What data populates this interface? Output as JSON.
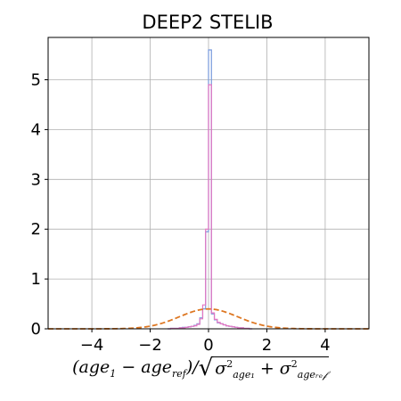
{
  "chart_data": {
    "type": "histogram",
    "title": "DEEP2 STELIB",
    "xlabel_parts": {
      "open": "(",
      "a1": "age",
      "a1_sub": "1",
      "minus": " − ",
      "a2": "age",
      "a2_sub": "ref",
      "close": ")/",
      "sig1": "σ",
      "sig1_sup": "2",
      "sig1_sub": "age₁",
      "plus": " + ",
      "sig2": "σ",
      "sig2_sup": "2",
      "sig2_sub": "ageᵣₑ𝒻"
    },
    "xlim": [
      -5.5,
      5.5
    ],
    "ylim": [
      0,
      5.85
    ],
    "xticks": [
      -4,
      -2,
      0,
      2,
      4
    ],
    "xtick_labels": [
      "−4",
      "−2",
      "0",
      "2",
      "4"
    ],
    "yticks": [
      0,
      1,
      2,
      3,
      4,
      5
    ],
    "ytick_labels": [
      "0",
      "1",
      "2",
      "3",
      "4",
      "5"
    ],
    "grid": true,
    "bin_width": 0.1,
    "series": [
      {
        "name": "histogram (blue)",
        "color": "#7799dd",
        "style": "step",
        "bins_start": -1.4,
        "values": [
          0.0,
          0.01,
          0.01,
          0.01,
          0.02,
          0.03,
          0.03,
          0.04,
          0.05,
          0.07,
          0.1,
          0.22,
          0.4,
          1.95,
          5.6,
          0.3,
          0.18,
          0.12,
          0.1,
          0.08,
          0.06,
          0.05,
          0.04,
          0.03,
          0.02,
          0.02,
          0.01,
          0.01,
          0.0
        ]
      },
      {
        "name": "histogram (pink)",
        "color": "#e377c2",
        "style": "step",
        "bins_start": -1.4,
        "values": [
          0.0,
          0.01,
          0.01,
          0.01,
          0.02,
          0.02,
          0.03,
          0.04,
          0.05,
          0.06,
          0.09,
          0.2,
          0.48,
          2.0,
          4.9,
          0.32,
          0.19,
          0.13,
          0.1,
          0.08,
          0.06,
          0.05,
          0.04,
          0.03,
          0.02,
          0.02,
          0.01,
          0.01,
          0.0
        ]
      },
      {
        "name": "unit gaussian",
        "color": "#dd7722",
        "style": "dashed",
        "function": "normal",
        "mean": 0,
        "sigma": 1
      }
    ]
  }
}
